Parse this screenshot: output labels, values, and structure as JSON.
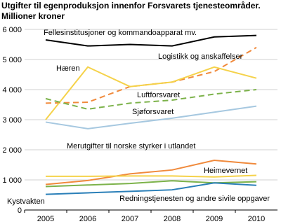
{
  "chart_data": {
    "type": "line",
    "title": "Utgifter til egenproduksjon innenfor Forsvarets tjenesteområder.",
    "subtitle": "Millioner kroner",
    "categories": [
      "2005",
      "2006",
      "2007",
      "2008",
      "2009",
      "2010"
    ],
    "ylim": [
      0,
      6000
    ],
    "yticks": [
      0,
      {
        "value": 1000,
        "label": "1 000"
      },
      {
        "value": 2000,
        "label": "2 000"
      },
      {
        "value": 3000,
        "label": "3 000"
      },
      {
        "value": 4000,
        "label": "4 000"
      },
      {
        "value": 5000,
        "label": "5 000"
      },
      {
        "value": 6000,
        "label": "6 000"
      }
    ],
    "grid": true,
    "series": [
      {
        "name": "Fellesinstitusjoner og kommandoapparat mv.",
        "color": "#000000",
        "dashed": false,
        "values": [
          5650,
          5450,
          5500,
          5450,
          5750,
          5800
        ]
      },
      {
        "name": "Logistikk og anskaffelser",
        "color": "#f08a3c",
        "dashed": true,
        "values": [
          3550,
          3580,
          4100,
          4250,
          4600,
          5400
        ]
      },
      {
        "name": "Hæren",
        "color": "#f5d24a",
        "dashed": false,
        "values": [
          3000,
          4750,
          4100,
          4250,
          4750,
          4380
        ]
      },
      {
        "name": "Luftforsvaret",
        "color": "#7cb24a",
        "dashed": true,
        "values": [
          3700,
          3350,
          3550,
          3650,
          3850,
          4000
        ]
      },
      {
        "name": "Sjøforsvaret",
        "color": "#a6c8e0",
        "dashed": false,
        "values": [
          2920,
          2700,
          2880,
          3050,
          3250,
          3450
        ]
      },
      {
        "name": "Merutgifter til norske styrker i utlandet",
        "color": "#f08a3c",
        "dashed": false,
        "values": [
          850,
          980,
          1200,
          1330,
          1650,
          1530
        ]
      },
      {
        "name": "Heimevernet",
        "color": "#f5d24a",
        "dashed": false,
        "values": [
          1120,
          1120,
          1130,
          1130,
          1100,
          1150
        ]
      },
      {
        "name": "Kystvakten",
        "color": "#7cb24a",
        "dashed": false,
        "values": [
          780,
          830,
          880,
          970,
          900,
          940
        ]
      },
      {
        "name": "Redningstjenesten og andre sivile oppgaver",
        "color": "#2a7fb8",
        "dashed": false,
        "values": [
          520,
          570,
          620,
          670,
          900,
          820
        ]
      }
    ]
  }
}
